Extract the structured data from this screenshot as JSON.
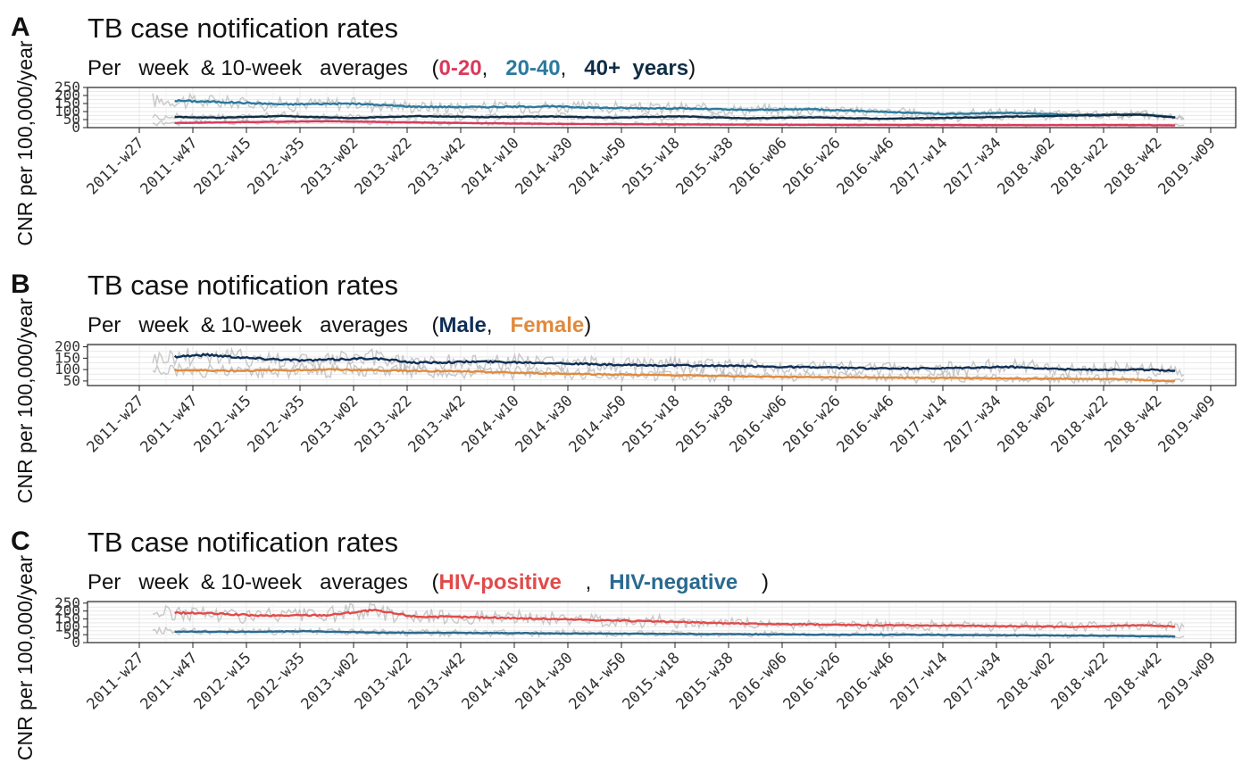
{
  "colors": {
    "raw": "#b9b9b9",
    "grid": "#e8e8e8",
    "axis": "#222222"
  },
  "chart_data": [
    {
      "type": "line",
      "tag": "A",
      "title": "TB case notification rates",
      "subtitle_prefix": "Per   week  & 10-week   averages    (",
      "subtitle_suffix": ")",
      "legend_parts": [
        {
          "text": "0-20",
          "color": "#d93a5c",
          "bold": true
        },
        {
          "text": ",   ",
          "color": "#111111",
          "bold": false
        },
        {
          "text": "20-40",
          "color": "#2a7a9e",
          "bold": true
        },
        {
          "text": ",   ",
          "color": "#111111",
          "bold": false
        },
        {
          "text": "40+  years",
          "color": "#0f2e45",
          "bold": true
        }
      ],
      "ylabel": "CNR per 100,000/year",
      "ylim": [
        0,
        250
      ],
      "y_ticks": [
        0,
        50,
        100,
        150,
        200,
        250
      ],
      "y_tick_labels": [
        "0",
        "50",
        "100",
        "150",
        "200",
        "250"
      ],
      "x_ticks": [
        "2011-w27",
        "2011-w47",
        "2012-w15",
        "2012-w35",
        "2013-w02",
        "2013-w22",
        "2013-w42",
        "2014-w10",
        "2014-w30",
        "2014-w50",
        "2015-w18",
        "2015-w38",
        "2016-w06",
        "2016-w26",
        "2016-w46",
        "2017-w14",
        "2017-w34",
        "2018-w02",
        "2018-w22",
        "2018-w42",
        "2019-w09"
      ],
      "series": [
        {
          "color": "#2a7a9e",
          "knots": [
            [
              5,
              170
            ],
            [
              30,
              160
            ],
            [
              60,
              145
            ],
            [
              90,
              150
            ],
            [
              120,
              130
            ],
            [
              150,
              128
            ],
            [
              180,
              132
            ],
            [
              210,
              122
            ],
            [
              240,
              120
            ],
            [
              270,
              110
            ],
            [
              300,
              115
            ],
            [
              330,
              100
            ],
            [
              360,
              85
            ],
            [
              390,
              92
            ],
            [
              420,
              80
            ],
            [
              450,
              82
            ],
            [
              470,
              60
            ]
          ]
        },
        {
          "color": "#0f2e45",
          "knots": [
            [
              5,
              68
            ],
            [
              30,
              62
            ],
            [
              60,
              72
            ],
            [
              90,
              60
            ],
            [
              120,
              72
            ],
            [
              150,
              65
            ],
            [
              180,
              70
            ],
            [
              210,
              62
            ],
            [
              240,
              70
            ],
            [
              270,
              58
            ],
            [
              300,
              64
            ],
            [
              330,
              55
            ],
            [
              360,
              60
            ],
            [
              390,
              68
            ],
            [
              420,
              75
            ],
            [
              450,
              80
            ],
            [
              470,
              60
            ]
          ]
        },
        {
          "color": "#d93a5c",
          "knots": [
            [
              5,
              28
            ],
            [
              40,
              34
            ],
            [
              80,
              40
            ],
            [
              120,
              32
            ],
            [
              160,
              26
            ],
            [
              200,
              22
            ],
            [
              240,
              20
            ],
            [
              280,
              18
            ],
            [
              320,
              17
            ],
            [
              360,
              16
            ],
            [
              400,
              15
            ],
            [
              440,
              16
            ],
            [
              470,
              14
            ]
          ]
        }
      ]
    },
    {
      "type": "line",
      "tag": "B",
      "title": "TB case notification rates",
      "subtitle_prefix": "Per   week  & 10-week   averages    (",
      "subtitle_suffix": ")",
      "legend_parts": [
        {
          "text": "Male",
          "color": "#0f2e55",
          "bold": true
        },
        {
          "text": ",   ",
          "color": "#111111",
          "bold": false
        },
        {
          "text": "Female",
          "color": "#e08a3c",
          "bold": true
        }
      ],
      "ylabel": "CNR per 100,000/year",
      "ylim": [
        30,
        210
      ],
      "y_ticks": [
        50,
        100,
        150,
        200
      ],
      "y_tick_labels": [
        "50",
        "100",
        "150",
        "200"
      ],
      "x_ticks": [
        "2011-w27",
        "2011-w47",
        "2012-w15",
        "2012-w35",
        "2013-w02",
        "2013-w22",
        "2013-w42",
        "2014-w10",
        "2014-w30",
        "2014-w50",
        "2015-w18",
        "2015-w38",
        "2016-w06",
        "2016-w26",
        "2016-w46",
        "2017-w14",
        "2017-w34",
        "2018-w02",
        "2018-w22",
        "2018-w42",
        "2019-w09"
      ],
      "series": [
        {
          "color": "#0f2e55",
          "knots": [
            [
              5,
              155
            ],
            [
              25,
              165
            ],
            [
              45,
              150
            ],
            [
              70,
              140
            ],
            [
              100,
              150
            ],
            [
              120,
              130
            ],
            [
              150,
              135
            ],
            [
              180,
              130
            ],
            [
              210,
              120
            ],
            [
              240,
              118
            ],
            [
              270,
              115
            ],
            [
              300,
              110
            ],
            [
              330,
              105
            ],
            [
              360,
              105
            ],
            [
              390,
              112
            ],
            [
              420,
              100
            ],
            [
              450,
              100
            ],
            [
              470,
              95
            ]
          ]
        },
        {
          "color": "#e08a3c",
          "knots": [
            [
              5,
              98
            ],
            [
              40,
              95
            ],
            [
              80,
              100
            ],
            [
              110,
              96
            ],
            [
              140,
              92
            ],
            [
              170,
              85
            ],
            [
              200,
              80
            ],
            [
              230,
              76
            ],
            [
              260,
              72
            ],
            [
              290,
              68
            ],
            [
              320,
              66
            ],
            [
              350,
              64
            ],
            [
              380,
              62
            ],
            [
              410,
              60
            ],
            [
              440,
              58
            ],
            [
              470,
              48
            ]
          ]
        }
      ]
    },
    {
      "type": "line",
      "tag": "C",
      "title": "TB case notification rates",
      "subtitle_prefix": "Per   week  & 10-week   averages    (",
      "subtitle_suffix": ")",
      "legend_parts": [
        {
          "text": "HIV-positive",
          "color": "#e24a4a",
          "bold": true
        },
        {
          "text": "    ,   ",
          "color": "#111111",
          "bold": false
        },
        {
          "text": "HIV-negative",
          "color": "#2a6a90",
          "bold": true
        },
        {
          "text": "    ",
          "color": "#111111",
          "bold": false
        }
      ],
      "ylabel": "CNR per 100,000/year",
      "ylim": [
        0,
        260
      ],
      "y_ticks": [
        0,
        50,
        100,
        150,
        200,
        250
      ],
      "y_tick_labels": [
        "0",
        "50",
        "100",
        "150",
        "200",
        "250"
      ],
      "x_ticks": [
        "2011-w27",
        "2011-w47",
        "2012-w15",
        "2012-w35",
        "2013-w02",
        "2013-w22",
        "2013-w42",
        "2014-w10",
        "2014-w30",
        "2014-w50",
        "2015-w18",
        "2015-w38",
        "2016-w06",
        "2016-w26",
        "2016-w46",
        "2017-w14",
        "2017-w34",
        "2018-w02",
        "2018-w22",
        "2018-w42",
        "2019-w09"
      ],
      "series": [
        {
          "color": "#e24a4a",
          "knots": [
            [
              5,
              190
            ],
            [
              25,
              185
            ],
            [
              50,
              170
            ],
            [
              80,
              175
            ],
            [
              100,
              205
            ],
            [
              120,
              165
            ],
            [
              150,
              160
            ],
            [
              180,
              150
            ],
            [
              210,
              140
            ],
            [
              240,
              130
            ],
            [
              270,
              120
            ],
            [
              300,
              115
            ],
            [
              330,
              110
            ],
            [
              360,
              108
            ],
            [
              390,
              104
            ],
            [
              420,
              100
            ],
            [
              450,
              110
            ],
            [
              470,
              100
            ]
          ]
        },
        {
          "color": "#2a6a90",
          "knots": [
            [
              5,
              70
            ],
            [
              40,
              68
            ],
            [
              70,
              72
            ],
            [
              100,
              64
            ],
            [
              130,
              62
            ],
            [
              160,
              60
            ],
            [
              190,
              58
            ],
            [
              220,
              56
            ],
            [
              250,
              54
            ],
            [
              280,
              52
            ],
            [
              310,
              50
            ],
            [
              340,
              50
            ],
            [
              370,
              48
            ],
            [
              400,
              46
            ],
            [
              430,
              44
            ],
            [
              470,
              38
            ]
          ]
        }
      ]
    }
  ]
}
